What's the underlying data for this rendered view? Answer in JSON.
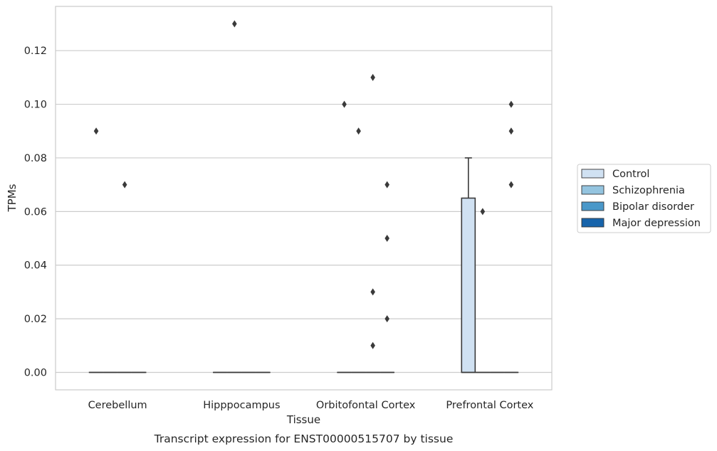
{
  "chart_data": {
    "type": "box",
    "title": "",
    "caption": "Transcript expression for ENST00000515707 by tissue",
    "xlabel": "Tissue",
    "ylabel": "TPMs",
    "ylim": [
      -0.0065,
      0.1365
    ],
    "yticks": [
      0.0,
      0.02,
      0.04,
      0.06,
      0.08,
      0.1,
      0.12
    ],
    "ytick_labels": [
      "0.00",
      "0.02",
      "0.04",
      "0.06",
      "0.08",
      "0.10",
      "0.12"
    ],
    "grid": true,
    "legend_position": "right",
    "categories": [
      "Cerebellum",
      "Hipppocampus",
      "Orbitofontal Cortex",
      "Prefrontal Cortex"
    ],
    "series": [
      {
        "name": "Control",
        "color": "#d0e1f2",
        "boxes": [
          {
            "category": "Cerebellum",
            "q1": 0,
            "median": 0,
            "q3": 0,
            "whisker_low": 0,
            "whisker_high": 0,
            "outliers": [
              0.09
            ]
          },
          {
            "category": "Hipppocampus",
            "q1": 0,
            "median": 0,
            "q3": 0,
            "whisker_low": 0,
            "whisker_high": 0,
            "outliers": []
          },
          {
            "category": "Orbitofontal Cortex",
            "q1": 0,
            "median": 0,
            "q3": 0,
            "whisker_low": 0,
            "whisker_high": 0,
            "outliers": [
              0.1
            ]
          },
          {
            "category": "Prefrontal Cortex",
            "q1": 0,
            "median": 0,
            "q3": 0.065,
            "whisker_low": 0,
            "whisker_high": 0.08,
            "outliers": []
          }
        ]
      },
      {
        "name": "Schizophrenia",
        "color": "#94c4df",
        "boxes": [
          {
            "category": "Cerebellum",
            "q1": 0,
            "median": 0,
            "q3": 0,
            "whisker_low": 0,
            "whisker_high": 0,
            "outliers": []
          },
          {
            "category": "Hipppocampus",
            "q1": 0,
            "median": 0,
            "q3": 0,
            "whisker_low": 0,
            "whisker_high": 0,
            "outliers": [
              0.13
            ]
          },
          {
            "category": "Orbitofontal Cortex",
            "q1": 0,
            "median": 0,
            "q3": 0,
            "whisker_low": 0,
            "whisker_high": 0,
            "outliers": [
              0.09
            ]
          },
          {
            "category": "Prefrontal Cortex",
            "q1": 0,
            "median": 0,
            "q3": 0,
            "whisker_low": 0,
            "whisker_high": 0,
            "outliers": [
              0.06
            ]
          }
        ]
      },
      {
        "name": "Bipolar disorder",
        "color": "#4a98c9",
        "boxes": [
          {
            "category": "Cerebellum",
            "q1": 0,
            "median": 0,
            "q3": 0,
            "whisker_low": 0,
            "whisker_high": 0,
            "outliers": [
              0.07
            ]
          },
          {
            "category": "Hipppocampus",
            "q1": 0,
            "median": 0,
            "q3": 0,
            "whisker_low": 0,
            "whisker_high": 0,
            "outliers": []
          },
          {
            "category": "Orbitofontal Cortex",
            "q1": 0,
            "median": 0,
            "q3": 0,
            "whisker_low": 0,
            "whisker_high": 0,
            "outliers": [
              0.11,
              0.03,
              0.01
            ]
          },
          {
            "category": "Prefrontal Cortex",
            "q1": 0,
            "median": 0,
            "q3": 0,
            "whisker_low": 0,
            "whisker_high": 0,
            "outliers": []
          }
        ]
      },
      {
        "name": "Major depression",
        "color": "#1764ab",
        "boxes": [
          {
            "category": "Cerebellum",
            "q1": 0,
            "median": 0,
            "q3": 0,
            "whisker_low": 0,
            "whisker_high": 0,
            "outliers": []
          },
          {
            "category": "Hipppocampus",
            "q1": 0,
            "median": 0,
            "q3": 0,
            "whisker_low": 0,
            "whisker_high": 0,
            "outliers": []
          },
          {
            "category": "Orbitofontal Cortex",
            "q1": 0,
            "median": 0,
            "q3": 0,
            "whisker_low": 0,
            "whisker_high": 0,
            "outliers": [
              0.07,
              0.05,
              0.02
            ]
          },
          {
            "category": "Prefrontal Cortex",
            "q1": 0,
            "median": 0,
            "q3": 0,
            "whisker_low": 0,
            "whisker_high": 0,
            "outliers": [
              0.1,
              0.09,
              0.07
            ]
          }
        ]
      }
    ]
  }
}
